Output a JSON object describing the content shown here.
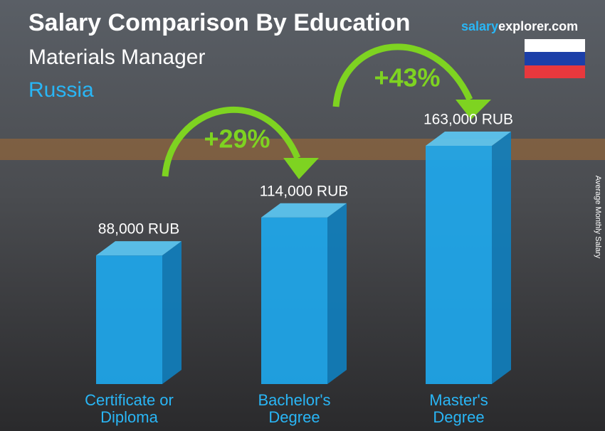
{
  "chart_data": {
    "type": "bar3d",
    "title": "Salary Comparison By Education",
    "subtitle": "Materials Manager",
    "country": "Russia",
    "brand": [
      "salary",
      "explorer.com"
    ],
    "axis_label": "Average Monthly Salary",
    "categories": [
      "Certificate or Diploma",
      "Bachelor's Degree",
      "Master's Degree"
    ],
    "values": [
      88000,
      114000,
      163000
    ],
    "value_labels": [
      "88,000 RUB",
      "114,000 RUB",
      "163,000 RUB"
    ],
    "color": "#1eaaf0",
    "annotations": [
      "+29%",
      "+43%"
    ]
  }
}
